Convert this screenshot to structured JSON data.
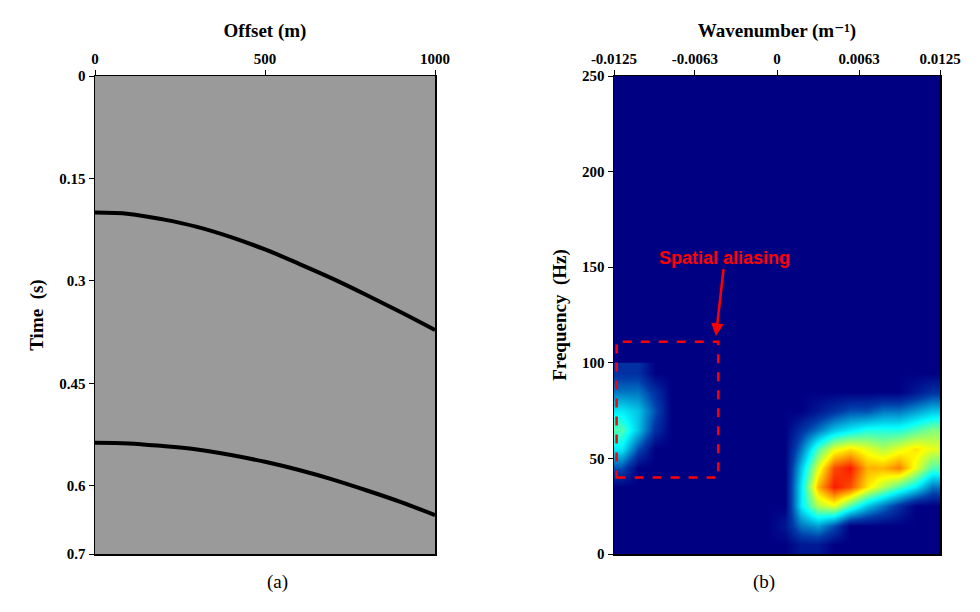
{
  "chart_data": [
    {
      "type": "line",
      "label": "(a)",
      "x_label": "Offset (m)",
      "y_label": "Time  (s)",
      "xlim": [
        0,
        1000
      ],
      "xticks": [
        0,
        500,
        1000
      ],
      "ylim": [
        0,
        0.7
      ],
      "yticks": [
        0,
        0.15,
        0.3,
        0.45,
        0.6,
        0.7
      ],
      "x": [
        0,
        100,
        200,
        300,
        400,
        500,
        600,
        700,
        800,
        900,
        1000
      ],
      "series": [
        {
          "color": "#000000",
          "values": [
            0.2,
            0.202,
            0.21,
            0.221,
            0.236,
            0.254,
            0.275,
            0.297,
            0.321,
            0.346,
            0.372
          ]
        },
        {
          "color": "#000000",
          "values": [
            0.537,
            0.538,
            0.542,
            0.547,
            0.555,
            0.565,
            0.577,
            0.591,
            0.607,
            0.624,
            0.643
          ]
        }
      ]
    },
    {
      "type": "heatmap",
      "label": "(b)",
      "x_label": "Wavenumber (m⁻¹)",
      "y_label": "Frequency  (Hz)",
      "xlim": [
        -0.0125,
        0.0125
      ],
      "xticks": [
        -0.0125,
        -0.0063,
        0,
        0.0063,
        0.0125
      ],
      "ylim": [
        0,
        250
      ],
      "yticks": [
        0,
        50,
        100,
        150,
        200,
        250
      ],
      "color": "Jet",
      "zlim": [
        0,
        1
      ],
      "x": [
        -0.011875,
        -0.010625,
        -0.009375,
        -0.008125,
        -0.006875,
        -0.005625,
        -0.004375,
        -0.003125,
        -0.001875,
        -0.000625,
        0.000625,
        0.001875,
        0.003125,
        0.004375,
        0.005625,
        0.006875,
        0.008125,
        0.009375,
        0.010625,
        0.011875
      ],
      "y": [
        5,
        15,
        25,
        35,
        45,
        55,
        65,
        75,
        85,
        95
      ],
      "cells": [
        [
          0,
          0,
          0,
          0,
          0,
          0,
          0,
          0,
          0,
          0,
          0,
          0.05,
          0.05,
          0,
          0,
          0,
          0,
          0,
          0,
          0
        ],
        [
          0,
          0,
          0,
          0,
          0,
          0,
          0,
          0,
          0,
          0,
          0.05,
          0.2,
          0.25,
          0.15,
          0,
          0,
          0,
          0,
          0,
          0
        ],
        [
          0,
          0,
          0,
          0,
          0,
          0,
          0,
          0,
          0,
          0,
          0,
          0.35,
          0.55,
          0.6,
          0.45,
          0.3,
          0.2,
          0.1,
          0,
          0
        ],
        [
          0,
          0,
          0,
          0,
          0,
          0,
          0,
          0,
          0,
          0,
          0,
          0.35,
          0.7,
          0.85,
          0.8,
          0.65,
          0.55,
          0.45,
          0.35,
          0.2
        ],
        [
          0.15,
          0,
          0,
          0,
          0,
          0,
          0,
          0,
          0,
          0,
          0,
          0.3,
          0.6,
          0.8,
          0.85,
          0.7,
          0.7,
          0.75,
          0.6,
          0.45
        ],
        [
          0.35,
          0.15,
          0,
          0,
          0,
          0,
          0,
          0,
          0,
          0,
          0,
          0.2,
          0.45,
          0.6,
          0.65,
          0.6,
          0.55,
          0.6,
          0.65,
          0.6
        ],
        [
          0.45,
          0.3,
          0.1,
          0,
          0,
          0,
          0,
          0,
          0,
          0,
          0,
          0.1,
          0.2,
          0.3,
          0.35,
          0.4,
          0.4,
          0.4,
          0.45,
          0.5
        ],
        [
          0.35,
          0.3,
          0.15,
          0,
          0,
          0,
          0,
          0,
          0,
          0,
          0,
          0,
          0.05,
          0.1,
          0.15,
          0.15,
          0.2,
          0.2,
          0.25,
          0.3
        ],
        [
          0.2,
          0.2,
          0.1,
          0,
          0,
          0,
          0,
          0,
          0,
          0,
          0,
          0,
          0,
          0,
          0,
          0,
          0,
          0,
          0.05,
          0.1
        ],
        [
          0.1,
          0.1,
          0,
          0,
          0,
          0,
          0,
          0,
          0,
          0,
          0,
          0,
          0,
          0,
          0,
          0,
          0,
          0,
          0,
          0
        ]
      ],
      "annotations": [
        {
          "text": "Spatial aliasing",
          "x": -0.0047,
          "y": 113,
          "text_x": -0.004,
          "text_y": 155,
          "color": "#ff0000"
        }
      ],
      "box": {
        "x": [
          -0.0123,
          -0.0045
        ],
        "y": [
          40,
          111
        ],
        "color": "#ff0000",
        "line_style": "dash"
      }
    }
  ]
}
